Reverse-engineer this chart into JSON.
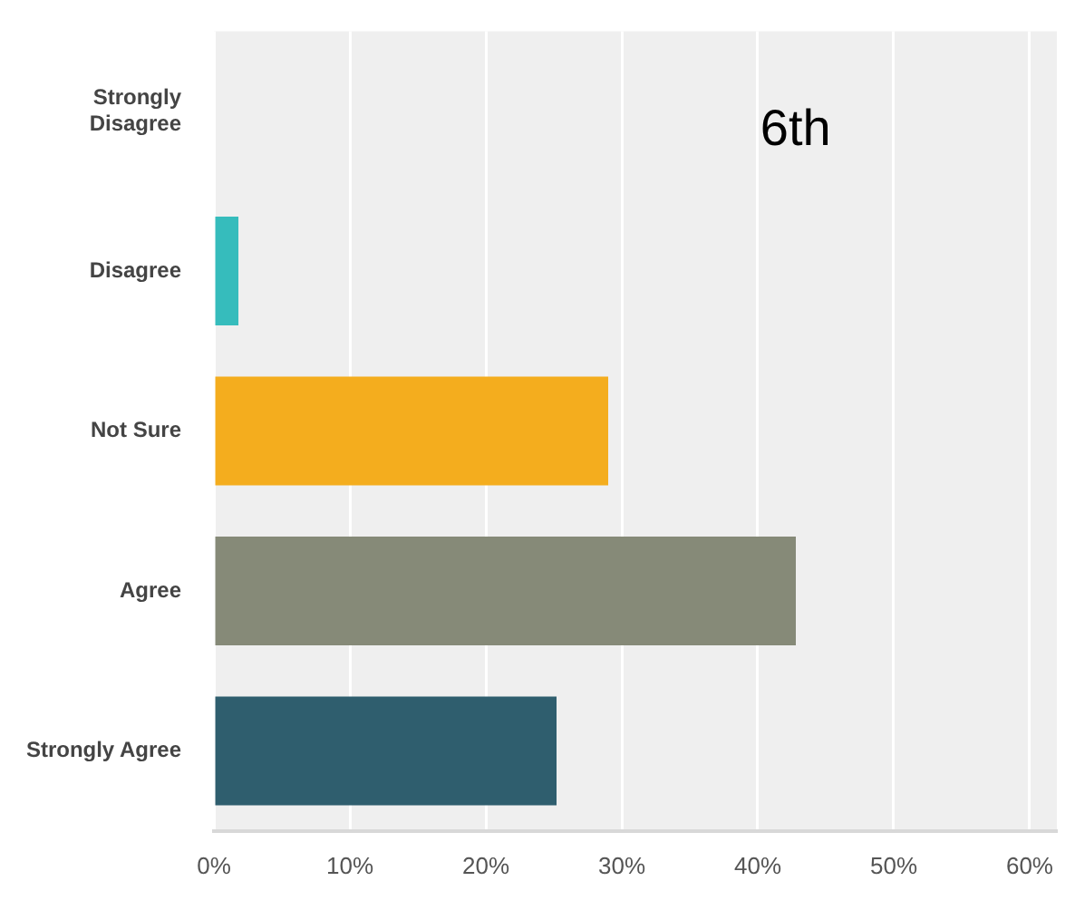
{
  "chart_data": {
    "type": "bar",
    "orientation": "horizontal",
    "categories": [
      "Strongly Disagree",
      "Disagree",
      "Not Sure",
      "Agree",
      "Strongly Agree"
    ],
    "values": [
      0,
      1.8,
      29,
      42.8,
      25.2
    ],
    "colors": [
      "#2f5e6e",
      "#36bcbc",
      "#f4ad1e",
      "#868a78",
      "#2f5e6e"
    ],
    "xlim": [
      0,
      62
    ],
    "xticks": [
      {
        "value": 0,
        "label": "0%"
      },
      {
        "value": 10,
        "label": "10%"
      },
      {
        "value": 20,
        "label": "20%"
      },
      {
        "value": 30,
        "label": "30%"
      },
      {
        "value": 40,
        "label": "40%"
      },
      {
        "value": 50,
        "label": "50%"
      },
      {
        "value": 60,
        "label": "60%"
      }
    ],
    "grid": "x",
    "annotations": [
      "6th"
    ]
  }
}
